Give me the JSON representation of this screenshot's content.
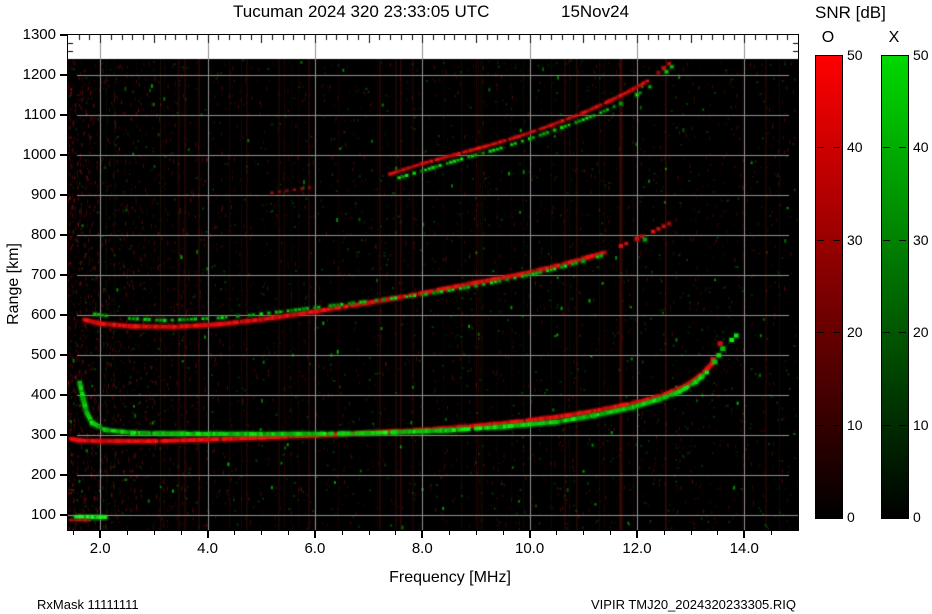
{
  "title": {
    "main": "Tucuman 2024 320 23:33:05 UTC",
    "date": "15Nov24"
  },
  "footer": {
    "rx_mask": "RxMask 11111111",
    "file": "VIPIR  TMJ20_2024320233305.RIQ"
  },
  "axes": {
    "x_label": "Frequency [MHz]",
    "y_label": "Range [km]",
    "x_tick_labels": [
      "2.0",
      "4.0",
      "6.0",
      "8.0",
      "10.0",
      "12.0",
      "14.0"
    ],
    "y_tick_labels": [
      "100",
      "200",
      "300",
      "400",
      "500",
      "600",
      "700",
      "800",
      "900",
      "1000",
      "1100",
      "1200",
      "1300"
    ]
  },
  "colorbars": {
    "title": "SNR [dB]",
    "min": 0,
    "max": 50,
    "tick_values": [
      0,
      10,
      20,
      30,
      40,
      50
    ],
    "tick_labels": [
      "0",
      "10",
      "20",
      "30",
      "40",
      "50"
    ],
    "bars": [
      {
        "label": "O",
        "top_color": "#ff0000",
        "bottom_color": "#000000"
      },
      {
        "label": "X",
        "top_color": "#00d800",
        "bottom_color": "#000000"
      }
    ]
  },
  "chart_data": {
    "type": "scatter",
    "title": "Tucuman 2024 320 23:33:05 UTC  15Nov24",
    "xlabel": "Frequency [MHz]",
    "ylabel": "Range [km]",
    "xlim": [
      1.4,
      15.0
    ],
    "ylim": [
      62.5,
      1300
    ],
    "x_major_ticks": [
      2,
      4,
      6,
      8,
      10,
      12,
      14
    ],
    "y_major_ticks": [
      100,
      200,
      300,
      400,
      500,
      600,
      700,
      800,
      900,
      1000,
      1100,
      1200,
      1300
    ],
    "grid": true,
    "background": "#000000",
    "grid_color": "#909090",
    "legend": "O = red colorbar 0-50 dB, X = green colorbar 0-50 dB",
    "series": [
      {
        "name": "F2 1-hop O",
        "mode": "O",
        "color": "#ee1111",
        "width": 4,
        "style": "solid",
        "points": [
          [
            1.45,
            290
          ],
          [
            1.6,
            286
          ],
          [
            2.0,
            284
          ],
          [
            3.0,
            284
          ],
          [
            4.0,
            288
          ],
          [
            5.0,
            293
          ],
          [
            6.0,
            298
          ],
          [
            7.0,
            305
          ],
          [
            8.0,
            312
          ],
          [
            9.0,
            322
          ],
          [
            10.0,
            336
          ],
          [
            10.7,
            348
          ],
          [
            11.4,
            364
          ],
          [
            12.0,
            381
          ],
          [
            12.5,
            400
          ],
          [
            12.9,
            422
          ],
          [
            13.2,
            450
          ],
          [
            13.4,
            478
          ]
        ]
      },
      {
        "name": "F2 1-hop O tail",
        "mode": "O",
        "color": "#dd1111",
        "width": 4,
        "style": "sparse",
        "points": [
          [
            13.42,
            488
          ],
          [
            13.5,
            510
          ],
          [
            13.55,
            528
          ]
        ]
      },
      {
        "name": "F2 1-hop X",
        "mode": "X",
        "color": "#11cc11",
        "width": 4,
        "style": "solid",
        "points": [
          [
            1.62,
            430
          ],
          [
            1.68,
            392
          ],
          [
            1.75,
            355
          ],
          [
            1.85,
            330
          ],
          [
            2.1,
            312
          ],
          [
            2.6,
            305
          ],
          [
            3.5,
            303
          ],
          [
            5.0,
            302
          ],
          [
            6.5,
            303
          ],
          [
            7.5,
            306
          ],
          [
            8.5,
            311
          ],
          [
            9.5,
            320
          ],
          [
            10.5,
            332
          ],
          [
            11.2,
            348
          ],
          [
            11.9,
            368
          ],
          [
            12.4,
            388
          ],
          [
            12.8,
            408
          ],
          [
            13.1,
            432
          ],
          [
            13.3,
            456
          ]
        ]
      },
      {
        "name": "F2 1-hop X tail",
        "mode": "X",
        "color": "#11cc11",
        "width": 4,
        "style": "sparse",
        "points": [
          [
            13.45,
            482
          ],
          [
            13.6,
            515
          ],
          [
            13.85,
            548
          ]
        ]
      },
      {
        "name": "E layer X",
        "mode": "X",
        "color": "#22dd22",
        "width": 4,
        "style": "solid",
        "points": [
          [
            1.5,
            95
          ],
          [
            2.1,
            94
          ]
        ]
      },
      {
        "name": "E layer O",
        "mode": "O",
        "color": "#cc2222",
        "width": 2,
        "style": "solid",
        "points": [
          [
            1.45,
            87
          ],
          [
            1.8,
            86
          ]
        ]
      },
      {
        "name": "F2 2-hop O",
        "mode": "O",
        "color": "#dd1111",
        "width": 4,
        "style": "solid",
        "points": [
          [
            1.7,
            588
          ],
          [
            2.0,
            578
          ],
          [
            2.6,
            571
          ],
          [
            3.4,
            570
          ],
          [
            4.2,
            576
          ],
          [
            5.0,
            588
          ],
          [
            6.0,
            608
          ],
          [
            7.0,
            630
          ],
          [
            8.0,
            654
          ],
          [
            9.0,
            680
          ],
          [
            9.8,
            700
          ],
          [
            10.5,
            722
          ],
          [
            11.0,
            740
          ],
          [
            11.4,
            756
          ]
        ]
      },
      {
        "name": "F2 2-hop O tail",
        "mode": "O",
        "color": "#bb1111",
        "width": 3,
        "style": "sparse",
        "points": [
          [
            11.7,
            772
          ],
          [
            12.0,
            790
          ],
          [
            12.3,
            808
          ],
          [
            12.6,
            828
          ]
        ]
      },
      {
        "name": "F2 2-hop X",
        "mode": "X",
        "color": "#11bb11",
        "width": 3,
        "style": "dashed",
        "points": [
          [
            1.9,
            602
          ],
          [
            2.4,
            592
          ],
          [
            3.2,
            586
          ],
          [
            4.2,
            592
          ],
          [
            5.0,
            602
          ],
          [
            6.0,
            618
          ],
          [
            7.0,
            634
          ],
          [
            8.0,
            650
          ],
          [
            9.0,
            672
          ],
          [
            9.8,
            694
          ],
          [
            10.4,
            712
          ],
          [
            11.0,
            734
          ],
          [
            11.4,
            750
          ]
        ]
      },
      {
        "name": "F2 2-hop X tail",
        "mode": "X",
        "color": "#11bb11",
        "width": 3,
        "style": "sparse",
        "points": [
          [
            11.8,
            768
          ],
          [
            12.15,
            788
          ]
        ]
      },
      {
        "name": "F2 3-hop O",
        "mode": "O",
        "color": "#cc1111",
        "width": 3,
        "style": "solid",
        "points": [
          [
            7.4,
            952
          ],
          [
            8.0,
            978
          ],
          [
            8.6,
            1000
          ],
          [
            9.2,
            1022
          ],
          [
            9.8,
            1046
          ],
          [
            10.4,
            1074
          ],
          [
            11.0,
            1105
          ],
          [
            11.5,
            1135
          ],
          [
            11.9,
            1162
          ],
          [
            12.2,
            1185
          ]
        ]
      },
      {
        "name": "F2 3-hop O tail",
        "mode": "O",
        "color": "#bb1111",
        "width": 3,
        "style": "sparse",
        "points": [
          [
            12.4,
            1205
          ],
          [
            12.6,
            1228
          ]
        ]
      },
      {
        "name": "F2 3-hop X",
        "mode": "X",
        "color": "#11bb11",
        "width": 3,
        "style": "dashed",
        "points": [
          [
            7.5,
            940
          ],
          [
            8.2,
            968
          ],
          [
            8.8,
            992
          ],
          [
            9.4,
            1014
          ],
          [
            10.0,
            1040
          ],
          [
            10.6,
            1068
          ],
          [
            11.2,
            1098
          ],
          [
            11.7,
            1128
          ],
          [
            12.0,
            1150
          ],
          [
            12.3,
            1175
          ]
        ]
      },
      {
        "name": "F2 3-hop X tail",
        "mode": "X",
        "color": "#11bb11",
        "width": 3,
        "style": "sparse",
        "points": [
          [
            12.45,
            1195
          ],
          [
            12.65,
            1220
          ]
        ]
      },
      {
        "name": "spread echo",
        "mode": "O",
        "color": "#881111",
        "width": 2,
        "style": "sparse",
        "points": [
          [
            5.2,
            905
          ],
          [
            5.9,
            918
          ]
        ]
      }
    ]
  }
}
